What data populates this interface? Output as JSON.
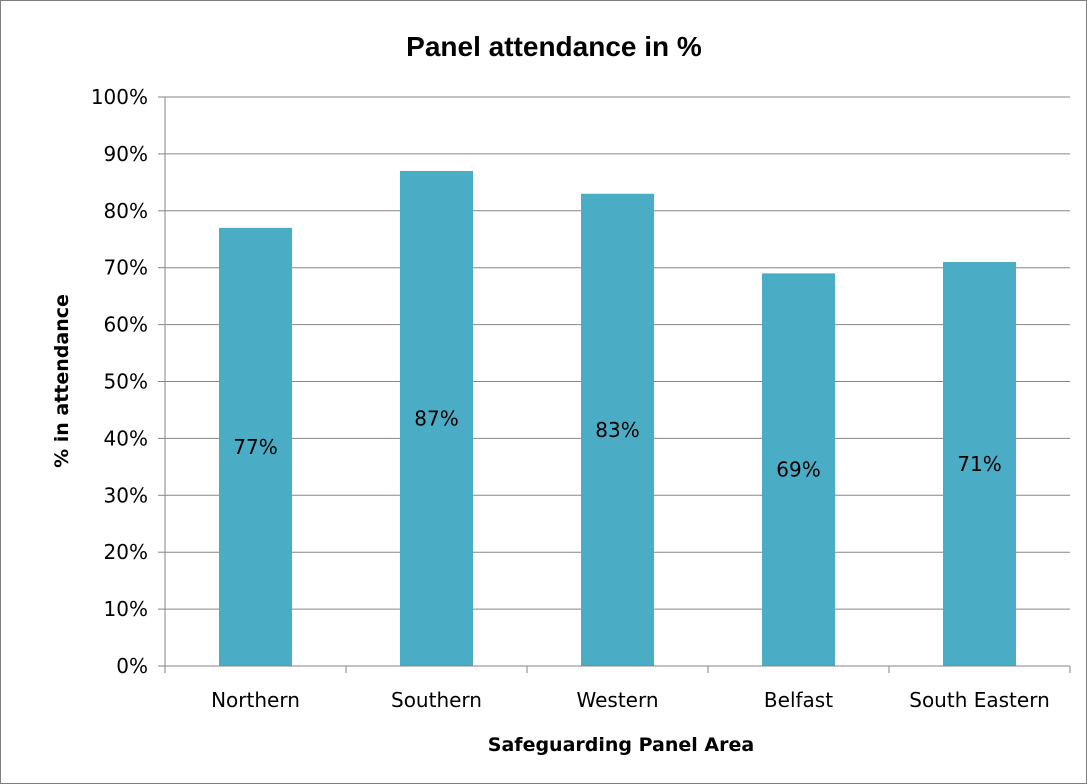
{
  "chart_data": {
    "type": "bar",
    "title": "Panel attendance in %",
    "xlabel": "Safeguarding Panel Area",
    "ylabel": "% in attendance",
    "categories": [
      "Northern",
      "Southern",
      "Western",
      "Belfast",
      "South Eastern"
    ],
    "values": [
      77,
      87,
      83,
      69,
      71
    ],
    "data_labels": [
      "77%",
      "87%",
      "83%",
      "69%",
      "71%"
    ],
    "ylim": [
      0,
      100
    ],
    "yticks": [
      0,
      10,
      20,
      30,
      40,
      50,
      60,
      70,
      80,
      90,
      100
    ],
    "ytick_labels": [
      "0%",
      "10%",
      "20%",
      "30%",
      "40%",
      "50%",
      "60%",
      "70%",
      "80%",
      "90%",
      "100%"
    ],
    "grid": true,
    "legend": "none",
    "bar_color": "#4bacc6",
    "gridline_color": "#868686"
  }
}
